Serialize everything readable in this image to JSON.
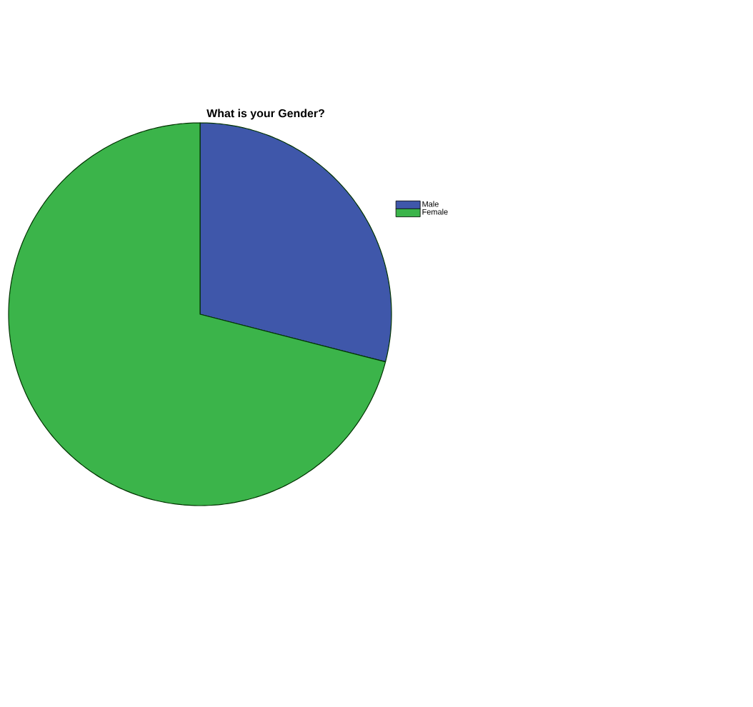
{
  "chart_data": {
    "type": "pie",
    "title": "What is your Gender?",
    "categories": [
      "Male",
      "Female"
    ],
    "values": [
      29,
      71
    ],
    "colors": [
      "#3f57aa",
      "#3bb44a"
    ],
    "legend": "top right"
  }
}
